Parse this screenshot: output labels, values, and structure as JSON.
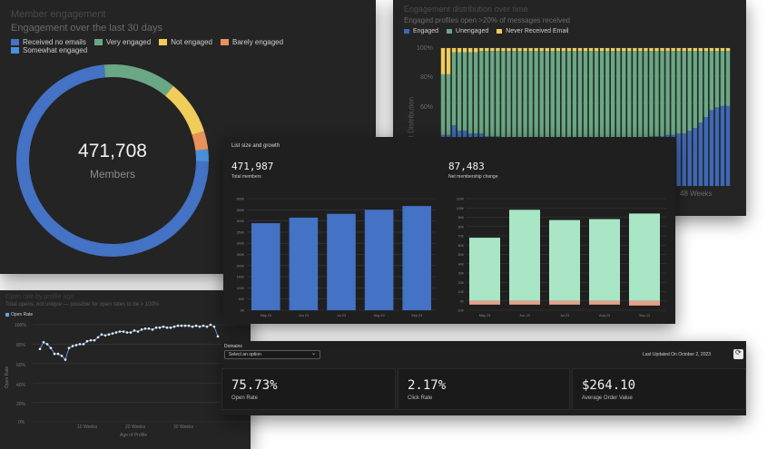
{
  "member_engagement": {
    "title": "Member engagement",
    "subtitle": "Engagement over the last 30 days",
    "legend": [
      {
        "label": "Received no emails",
        "color": "#4472c4"
      },
      {
        "label": "Very engaged",
        "color": "#6aa784"
      },
      {
        "label": "Not engaged",
        "color": "#f0cc5a"
      },
      {
        "label": "Barely engaged",
        "color": "#e6925a"
      },
      {
        "label": "Somewhat engaged",
        "color": "#4a90d9"
      }
    ],
    "total": "471,708",
    "total_label": "Members"
  },
  "distribution": {
    "title": "Engagement distribution over time",
    "subtitle": "Engaged profiles open >20% of messages received",
    "legend": [
      {
        "label": "Engaged",
        "color": "#3f68b5"
      },
      {
        "label": "Unengaged",
        "color": "#6aa784"
      },
      {
        "label": "Never Received Email",
        "color": "#f0cc5a"
      }
    ],
    "y_label": "Engagement Distribution",
    "x_tick": "48 Weeks",
    "y_ticks": [
      "100%",
      "80%",
      "60%"
    ]
  },
  "list_size": {
    "title": "List size and growth",
    "total_members": {
      "value": "471,987",
      "label": "Total members"
    },
    "net_change": {
      "value": "87,483",
      "label": "Net membership change"
    }
  },
  "open_rate": {
    "title": "Open rate by profile age",
    "subtitle": "Total opens, not unique — possible for open rates to be > 100%",
    "legend_label": "Open Rate",
    "y_label": "Open Rate",
    "x_label": "Age of Profile",
    "y_ticks": [
      "100%",
      "80%",
      "60%",
      "40%",
      "20%",
      "0%"
    ],
    "x_ticks": [
      "10 Weeks",
      "20 Weeks",
      "30 Weeks"
    ]
  },
  "domains": {
    "label": "Domains",
    "select_placeholder": "Select an option",
    "last_updated": "Last Updated On October 2, 2023",
    "stats": [
      {
        "value": "75.73%",
        "label": "Open Rate"
      },
      {
        "value": "2.17%",
        "label": "Click Rate"
      },
      {
        "value": "$264.10",
        "label": "Average Order Value"
      }
    ]
  },
  "chart_data": [
    {
      "type": "pie",
      "labels": [
        "Received no emails",
        "Very engaged",
        "Not engaged",
        "Barely engaged",
        "Somewhat engaged"
      ],
      "values": [
        72,
        12,
        9,
        3,
        2
      ],
      "colors": [
        "#4472c4",
        "#6aa784",
        "#f0cc5a",
        "#e6925a",
        "#4a90d9"
      ]
    },
    {
      "type": "bar",
      "stacked": true,
      "series": [
        {
          "name": "Engaged",
          "values": [
            37,
            37,
            44,
            40,
            40,
            38,
            38,
            38,
            36,
            36,
            36,
            35,
            35,
            35,
            34,
            34,
            34,
            34,
            33,
            33,
            33,
            33,
            32,
            32,
            32,
            32,
            32,
            32,
            33,
            33,
            33,
            33,
            34,
            34,
            34,
            35,
            35,
            35,
            36,
            36,
            36,
            37,
            37,
            38,
            38,
            40,
            42,
            46,
            50,
            55,
            57,
            58,
            58
          ]
        },
        {
          "name": "Unengaged",
          "values": [
            44,
            44,
            53,
            57,
            57,
            59,
            59,
            60,
            62,
            62,
            62,
            63,
            63,
            63,
            64,
            64,
            64,
            64,
            65,
            65,
            65,
            65,
            66,
            66,
            66,
            66,
            66,
            66,
            65,
            65,
            65,
            65,
            64,
            64,
            64,
            63,
            63,
            63,
            62,
            62,
            62,
            61,
            61,
            60,
            60,
            58,
            56,
            52,
            48,
            43,
            41,
            40,
            40
          ]
        },
        {
          "name": "Never Received Email",
          "values": [
            19,
            19,
            3,
            3,
            3,
            3,
            3,
            2,
            2,
            2,
            2,
            2,
            2,
            2,
            2,
            2,
            2,
            2,
            2,
            2,
            2,
            2,
            2,
            2,
            2,
            2,
            2,
            2,
            2,
            2,
            2,
            2,
            2,
            2,
            2,
            2,
            2,
            2,
            2,
            2,
            2,
            2,
            2,
            2,
            2,
            2,
            2,
            2,
            2,
            2,
            2,
            2,
            2
          ]
        }
      ],
      "ylim": [
        0,
        100
      ]
    },
    {
      "type": "bar",
      "categories": [
        "May 23",
        "Jun 23",
        "Jul 23",
        "Aug 23",
        "Sep 23"
      ],
      "values": [
        390000,
        415000,
        432000,
        450000,
        467000
      ],
      "ylim": [
        0,
        500000
      ]
    },
    {
      "type": "bar",
      "stacked": true,
      "categories": [
        "May 23",
        "Jun 23",
        "Jul 23",
        "Aug 23",
        "Sep 23"
      ],
      "series": [
        {
          "name": "Net",
          "values": [
            68,
            98,
            87,
            88,
            94
          ]
        },
        {
          "name": "Lost",
          "values": [
            -4,
            -4,
            -4,
            -4,
            -5
          ]
        }
      ],
      "ylim": [
        -10,
        110
      ]
    },
    {
      "type": "line",
      "x": [
        1,
        2,
        3,
        4,
        5,
        6,
        7,
        8,
        9,
        10,
        11,
        12,
        13,
        14,
        15,
        16,
        17,
        18,
        19,
        20,
        21,
        22,
        23,
        24,
        25,
        26,
        27,
        28,
        29,
        30,
        31,
        32,
        33,
        34,
        35,
        36,
        37,
        38,
        39,
        40,
        41,
        42,
        43,
        44,
        45,
        46,
        47,
        48,
        49,
        50
      ],
      "series": [
        {
          "name": "Open Rate",
          "values": [
            75,
            82,
            80,
            76,
            70,
            70,
            68,
            64,
            76,
            78,
            79,
            80,
            80,
            83,
            84,
            84,
            87,
            90,
            89,
            90,
            91,
            92,
            93,
            93,
            92,
            92,
            94,
            93,
            95,
            96,
            96,
            95,
            97,
            97,
            98,
            97,
            97,
            98,
            99,
            99,
            99,
            99,
            98,
            99,
            98,
            99,
            98,
            100,
            98,
            88
          ]
        }
      ],
      "ylim": [
        0,
        100
      ]
    }
  ]
}
